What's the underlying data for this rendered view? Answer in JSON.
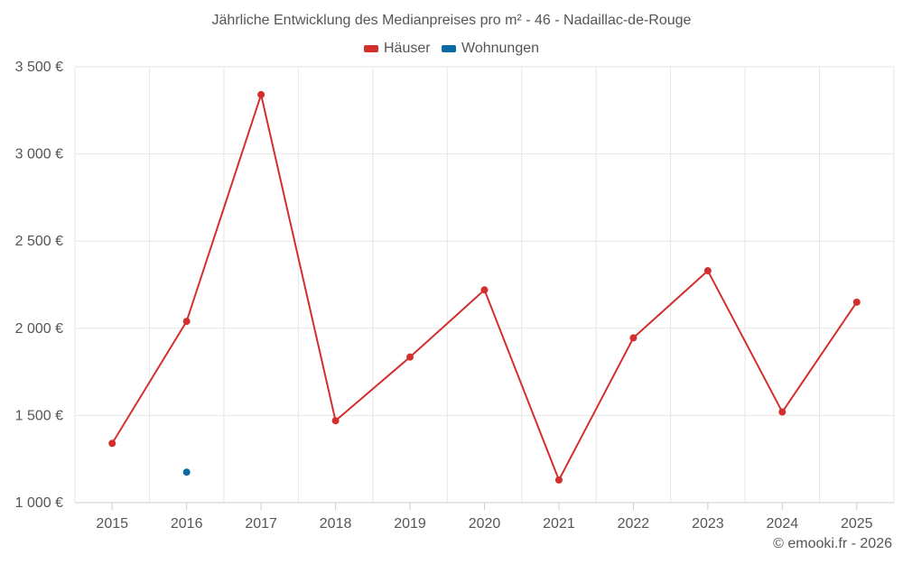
{
  "colors": {
    "houses": "#d32f2f",
    "apartments": "#0a6aa1",
    "grid": "#e6e6e6",
    "axis": "#cccccc"
  },
  "credit": "© emooki.fr - 2026",
  "chart_data": {
    "type": "line",
    "title": "Jährliche Entwicklung des Medianpreises pro m² - 46 - Nadaillac-de-Rouge",
    "x": [
      "2015",
      "2016",
      "2017",
      "2018",
      "2019",
      "2020",
      "2021",
      "2022",
      "2023",
      "2024",
      "2025"
    ],
    "ylim": [
      1000,
      3500
    ],
    "yticks": [
      1000,
      1500,
      2000,
      2500,
      3000,
      3500
    ],
    "ytick_labels": [
      "1 000 €",
      "1 500 €",
      "2 000 €",
      "2 500 €",
      "3 000 €",
      "3 500 €"
    ],
    "xlabel": "",
    "ylabel": "",
    "grid": true,
    "legend_position": "top-center",
    "series": [
      {
        "name": "Häuser",
        "color": "#d32f2f",
        "values": [
          1340,
          2040,
          3340,
          1470,
          1835,
          2220,
          1130,
          1945,
          2330,
          1520,
          2150
        ]
      },
      {
        "name": "Wohnungen",
        "color": "#0a6aa1",
        "values": [
          null,
          1175,
          null,
          null,
          null,
          null,
          null,
          null,
          null,
          null,
          null
        ]
      }
    ]
  }
}
